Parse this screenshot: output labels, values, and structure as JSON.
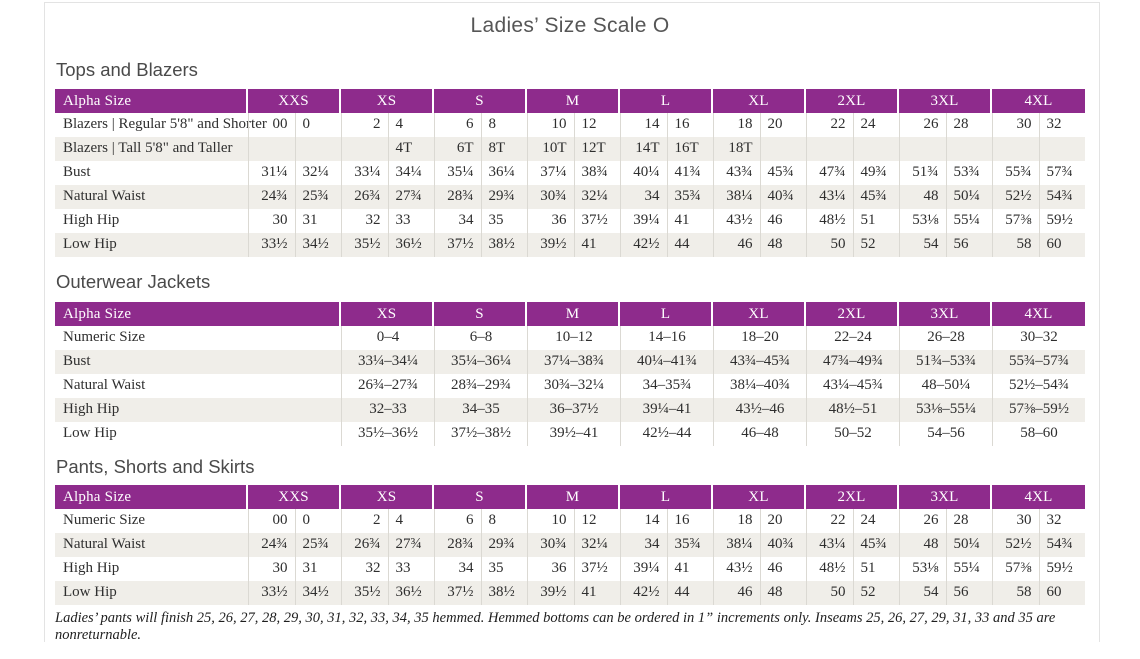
{
  "page": {
    "title": "Ladies’ Size Scale O",
    "footnote": "Ladies’ pants will finish 25, 26, 27, 28, 29, 30, 31, 32, 33, 34, 35 hemmed. Hemmed bottoms can be ordered in 1” increments only. Inseams 25, 26, 27, 29, 31, 33 and 35 are nonreturnable."
  },
  "colors": {
    "header_purple": "#8e2b8c",
    "row_shade": "#f0eee9"
  },
  "tables": [
    {
      "heading": "Tops and Blazers",
      "layout": "paired",
      "header_label": "Alpha Size",
      "size_groups": [
        "XXS",
        "XS",
        "S",
        "M",
        "L",
        "XL",
        "2XL",
        "3XL",
        "4XL"
      ],
      "rows": [
        {
          "label": "Blazers  |  Regular 5'8\" and Shorter",
          "values": [
            "00",
            "0",
            "2",
            "4",
            "6",
            "8",
            "10",
            "12",
            "14",
            "16",
            "18",
            "20",
            "22",
            "24",
            "26",
            "28",
            "30",
            "32"
          ]
        },
        {
          "label": "Blazers  |  Tall 5'8\" and Taller",
          "values": [
            "",
            "",
            "",
            "4T",
            "6T",
            "8T",
            "10T",
            "12T",
            "14T",
            "16T",
            "18T",
            "",
            "",
            "",
            "",
            "",
            "",
            ""
          ]
        },
        {
          "label": "Bust",
          "values": [
            "31¼",
            "32¼",
            "33¼",
            "34¼",
            "35¼",
            "36¼",
            "37¼",
            "38¾",
            "40¼",
            "41¾",
            "43¾",
            "45¾",
            "47¾",
            "49¾",
            "51¾",
            "53¾",
            "55¾",
            "57¾"
          ]
        },
        {
          "label": "Natural Waist",
          "values": [
            "24¾",
            "25¾",
            "26¾",
            "27¾",
            "28¾",
            "29¾",
            "30¾",
            "32¼",
            "34",
            "35¾",
            "38¼",
            "40¾",
            "43¼",
            "45¾",
            "48",
            "50¼",
            "52½",
            "54¾"
          ]
        },
        {
          "label": "High Hip",
          "values": [
            "30",
            "31",
            "32",
            "33",
            "34",
            "35",
            "36",
            "37½",
            "39¼",
            "41",
            "43½",
            "46",
            "48½",
            "51",
            "53⅛",
            "55¼",
            "57⅜",
            "59½"
          ]
        },
        {
          "label": "Low Hip",
          "values": [
            "33½",
            "34½",
            "35½",
            "36½",
            "37½",
            "38½",
            "39½",
            "41",
            "42½",
            "44",
            "46",
            "48",
            "50",
            "52",
            "54",
            "56",
            "58",
            "60"
          ]
        }
      ]
    },
    {
      "heading": "Outerwear Jackets",
      "layout": "single",
      "header_label": "Alpha Size",
      "size_groups": [
        "XS",
        "S",
        "M",
        "L",
        "XL",
        "2XL",
        "3XL",
        "4XL"
      ],
      "rows": [
        {
          "label": "Numeric Size",
          "values": [
            "0–4",
            "6–8",
            "10–12",
            "14–16",
            "18–20",
            "22–24",
            "26–28",
            "30–32"
          ]
        },
        {
          "label": "Bust",
          "values": [
            "33¼–34¼",
            "35¼–36¼",
            "37¼–38¾",
            "40¼–41¾",
            "43¾–45¾",
            "47¾–49¾",
            "51¾–53¾",
            "55¾–57¾"
          ]
        },
        {
          "label": "Natural Waist",
          "values": [
            "26¾–27¾",
            "28¾–29¾",
            "30¾–32¼",
            "34–35¾",
            "38¼–40¾",
            "43¼–45¾",
            "48–50¼",
            "52½–54¾"
          ]
        },
        {
          "label": "High Hip",
          "values": [
            "32–33",
            "34–35",
            "36–37½",
            "39¼–41",
            "43½–46",
            "48½–51",
            "53⅛–55¼",
            "57⅜–59½"
          ]
        },
        {
          "label": "Low Hip",
          "values": [
            "35½–36½",
            "37½–38½",
            "39½–41",
            "42½–44",
            "46–48",
            "50–52",
            "54–56",
            "58–60"
          ]
        }
      ]
    },
    {
      "heading": "Pants, Shorts and Skirts",
      "layout": "paired",
      "header_label": "Alpha Size",
      "size_groups": [
        "XXS",
        "XS",
        "S",
        "M",
        "L",
        "XL",
        "2XL",
        "3XL",
        "4XL"
      ],
      "rows": [
        {
          "label": "Numeric Size",
          "values": [
            "00",
            "0",
            "2",
            "4",
            "6",
            "8",
            "10",
            "12",
            "14",
            "16",
            "18",
            "20",
            "22",
            "24",
            "26",
            "28",
            "30",
            "32"
          ]
        },
        {
          "label": "Natural Waist",
          "values": [
            "24¾",
            "25¾",
            "26¾",
            "27¾",
            "28¾",
            "29¾",
            "30¾",
            "32¼",
            "34",
            "35¾",
            "38¼",
            "40¾",
            "43¼",
            "45¾",
            "48",
            "50¼",
            "52½",
            "54¾"
          ]
        },
        {
          "label": "High Hip",
          "values": [
            "30",
            "31",
            "32",
            "33",
            "34",
            "35",
            "36",
            "37½",
            "39¼",
            "41",
            "43½",
            "46",
            "48½",
            "51",
            "53⅛",
            "55¼",
            "57⅜",
            "59½"
          ]
        },
        {
          "label": "Low Hip",
          "values": [
            "33½",
            "34½",
            "35½",
            "36½",
            "37½",
            "38½",
            "39½",
            "41",
            "42½",
            "44",
            "46",
            "48",
            "50",
            "52",
            "54",
            "56",
            "58",
            "60"
          ]
        }
      ]
    }
  ]
}
